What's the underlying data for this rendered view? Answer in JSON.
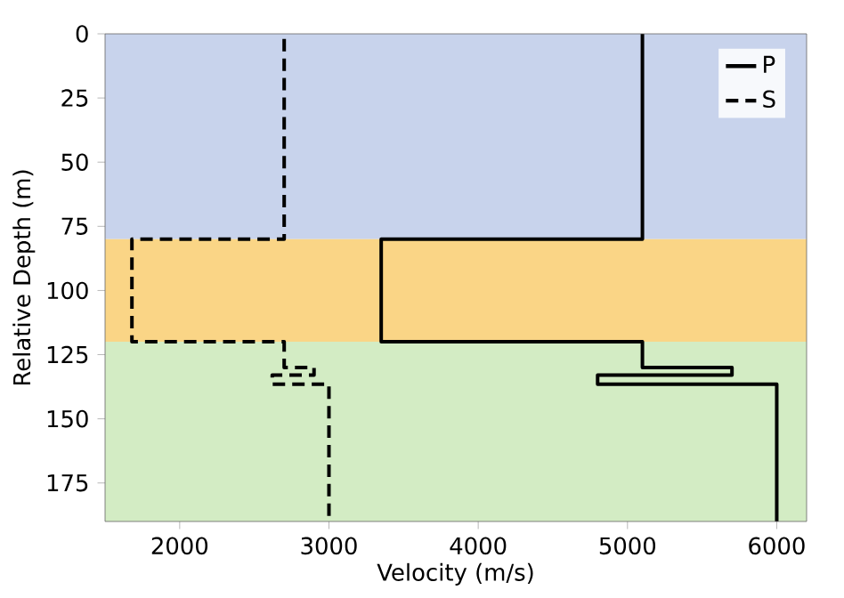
{
  "chart_data": {
    "type": "line",
    "xlabel": "Velocity (m/s)",
    "ylabel": "Relative Depth (m)",
    "xlim": [
      1500,
      6200
    ],
    "ylim": [
      190,
      0
    ],
    "xticks": [
      2000,
      3000,
      4000,
      5000,
      6000
    ],
    "yticks": [
      0,
      25,
      50,
      75,
      100,
      125,
      150,
      175
    ],
    "series": [
      {
        "name": "P",
        "color": "#000000",
        "line_style": "solid",
        "x": [
          5100,
          5100,
          3350,
          3350,
          5100,
          5100,
          5700,
          5700,
          4800,
          4800,
          6000,
          6000
        ],
        "values": [
          0,
          80,
          80,
          120,
          120,
          130,
          130,
          133,
          133,
          136.5,
          136.5,
          190
        ]
      },
      {
        "name": "S",
        "color": "#000000",
        "line_style": "dashed",
        "x": [
          2700,
          2700,
          1680,
          1680,
          2700,
          2700,
          2900,
          2900,
          2620,
          2620,
          3000,
          3000
        ],
        "values": [
          2,
          80,
          80,
          120,
          120,
          130,
          130,
          133,
          133,
          136.5,
          136.5,
          190
        ]
      }
    ],
    "bands": [
      {
        "axis": "y",
        "from": 0,
        "to": 80,
        "color": "#c8d3ec"
      },
      {
        "axis": "y",
        "from": 80,
        "to": 120,
        "color": "#fad586"
      },
      {
        "axis": "y",
        "from": 120,
        "to": 190,
        "color": "#d3ecc4"
      }
    ],
    "legend": "top right",
    "grid": false
  }
}
